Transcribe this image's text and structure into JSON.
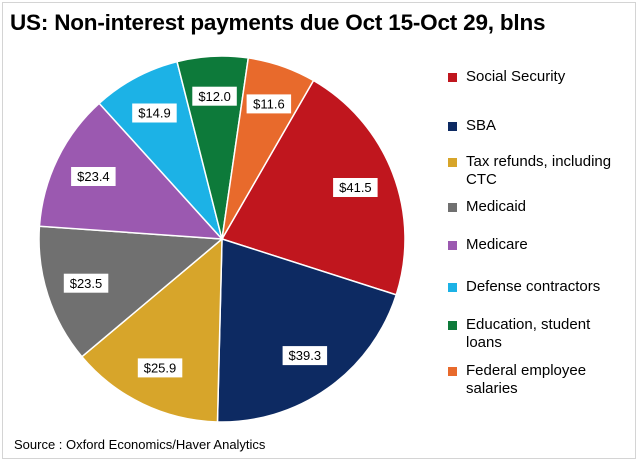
{
  "chart_data": {
    "type": "pie",
    "title": "US: Non-interest payments due Oct 15-Oct 29, blns",
    "slices": [
      {
        "label": "Social Security",
        "value": 41.5,
        "display": "$41.5",
        "color": "#c0161e"
      },
      {
        "label": "SBA",
        "value": 39.3,
        "display": "$39.3",
        "color": "#0d2a62"
      },
      {
        "label": "Tax refunds, including CTC",
        "value": 25.9,
        "display": "$25.9",
        "color": "#d7a52a"
      },
      {
        "label": "Medicaid",
        "value": 23.5,
        "display": "$23.5",
        "color": "#707070"
      },
      {
        "label": "Medicare",
        "value": 23.4,
        "display": "$23.4",
        "color": "#9b59b0"
      },
      {
        "label": "Defense contractors",
        "value": 14.9,
        "display": "$14.9",
        "color": "#1cb2e6"
      },
      {
        "label": "Education, student loans",
        "value": 12.0,
        "display": "$12.0",
        "color": "#0d7a3a"
      },
      {
        "label": "Federal employee salaries",
        "value": 11.6,
        "display": "$11.6",
        "color": "#e86a2c"
      }
    ],
    "legend": [
      {
        "label": "Social Security",
        "lines": [
          "Social Security"
        ]
      },
      {
        "label": "SBA",
        "lines": [
          "SBA"
        ]
      },
      {
        "label": "Tax refunds, including CTC",
        "lines": [
          "Tax refunds, including",
          "CTC"
        ]
      },
      {
        "label": "Medicaid",
        "lines": [
          "Medicaid"
        ]
      },
      {
        "label": "Medicare",
        "lines": [
          "Medicare"
        ]
      },
      {
        "label": "Defense contractors",
        "lines": [
          "Defense contractors"
        ]
      },
      {
        "label": "Education, student loans",
        "lines": [
          "Education, student",
          "loans"
        ]
      },
      {
        "label": "Federal employee salaries",
        "lines": [
          "Federal employee",
          "salaries"
        ]
      }
    ],
    "legend_placement": "right",
    "source": "Source : Oxford Economics/Haver Analytics"
  }
}
